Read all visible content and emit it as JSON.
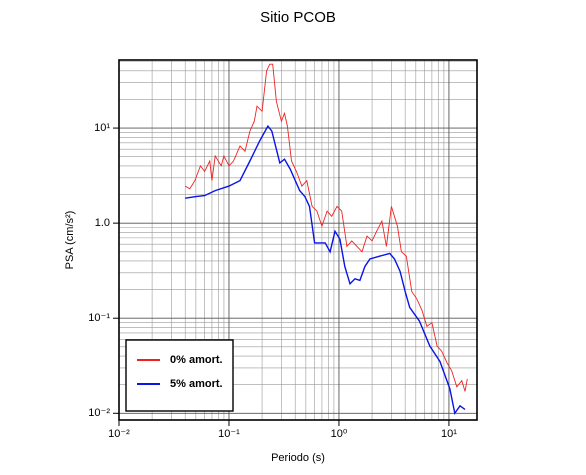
{
  "chart_data": {
    "type": "line",
    "title": "Sitio PCOB",
    "x_label": "Periodo (s)",
    "y_label": "PSA (cm/s²)",
    "xscale": "log",
    "yscale": "log",
    "grid": true,
    "legend": "lower-left",
    "xlim": [
      0.01,
      18
    ],
    "ylim": [
      0.0085,
      52
    ],
    "xticks": [
      {
        "value": 0.01,
        "label": "10⁻²"
      },
      {
        "value": 0.1,
        "label": "10⁻¹"
      },
      {
        "value": 1,
        "label": "10⁰"
      },
      {
        "value": 10,
        "label": "10¹"
      }
    ],
    "yticks": [
      {
        "value": 0.01,
        "label": "10⁻²"
      },
      {
        "value": 0.1,
        "label": "10⁻¹"
      },
      {
        "value": 1,
        "label": "1.0"
      },
      {
        "value": 10,
        "label": "10¹"
      }
    ],
    "xminorticks": [
      0.02,
      0.03,
      0.04,
      0.05,
      0.06,
      0.07,
      0.08,
      0.09,
      0.2,
      0.3,
      0.4,
      0.5,
      0.6,
      0.7,
      0.8,
      0.9,
      2,
      3,
      4,
      5,
      6,
      7,
      8,
      9
    ],
    "yminorticks": [
      0.02,
      0.03,
      0.04,
      0.05,
      0.06,
      0.07,
      0.08,
      0.09,
      0.2,
      0.3,
      0.4,
      0.5,
      0.6,
      0.7,
      0.8,
      0.9,
      2,
      3,
      4,
      5,
      6,
      7,
      8,
      9,
      20,
      30,
      40,
      50
    ],
    "series": [
      {
        "name": "0% amort.",
        "color": "#ee2222",
        "x": [
          0.04,
          0.044,
          0.049,
          0.055,
          0.06,
          0.067,
          0.07,
          0.075,
          0.085,
          0.09,
          0.1,
          0.11,
          0.126,
          0.14,
          0.155,
          0.17,
          0.18,
          0.2,
          0.22,
          0.235,
          0.25,
          0.27,
          0.3,
          0.32,
          0.34,
          0.37,
          0.41,
          0.46,
          0.51,
          0.57,
          0.63,
          0.7,
          0.78,
          0.86,
          0.96,
          1.06,
          1.18,
          1.31,
          1.46,
          1.62,
          1.8,
          2.0,
          2.2,
          2.46,
          2.7,
          3.0,
          3.4,
          3.7,
          4.1,
          4.6,
          5.1,
          5.7,
          6.3,
          7.0,
          7.8,
          8.6,
          9.6,
          10.6,
          11.8,
          13.1,
          14,
          14.7
        ],
        "values": [
          2.45,
          2.3,
          2.8,
          4.0,
          3.5,
          4.5,
          2.8,
          5.1,
          4.0,
          5.1,
          4.0,
          4.5,
          6.5,
          5.7,
          9.3,
          11.8,
          17,
          15,
          40,
          47,
          47,
          19,
          11.8,
          14.3,
          10.5,
          4.5,
          3.5,
          2.45,
          2.8,
          1.5,
          1.34,
          0.93,
          1.34,
          1.18,
          1.5,
          1.34,
          0.57,
          0.65,
          0.57,
          0.5,
          0.73,
          0.65,
          0.82,
          1.05,
          0.57,
          1.5,
          0.93,
          0.5,
          0.45,
          0.19,
          0.16,
          0.12,
          0.082,
          0.09,
          0.051,
          0.045,
          0.034,
          0.028,
          0.019,
          0.022,
          0.017,
          0.023
        ]
      },
      {
        "name": "5% amort.",
        "color": "#0a14e6",
        "x": [
          0.04,
          0.05,
          0.06,
          0.075,
          0.1,
          0.126,
          0.155,
          0.19,
          0.226,
          0.245,
          0.29,
          0.32,
          0.36,
          0.44,
          0.49,
          0.54,
          0.6,
          0.75,
          0.83,
          0.92,
          1.02,
          1.13,
          1.26,
          1.4,
          1.55,
          1.72,
          1.91,
          2.36,
          2.9,
          3.2,
          3.6,
          4.0,
          4.4,
          5.4,
          6.7,
          8.3,
          10.2,
          11.3,
          12.6,
          14
        ],
        "values": [
          1.83,
          1.9,
          1.95,
          2.2,
          2.45,
          2.8,
          4.5,
          7.3,
          10.5,
          9.3,
          4.3,
          4.7,
          3.7,
          2.2,
          1.9,
          1.5,
          0.62,
          0.62,
          0.5,
          0.82,
          0.68,
          0.35,
          0.23,
          0.26,
          0.25,
          0.35,
          0.42,
          0.45,
          0.48,
          0.42,
          0.31,
          0.19,
          0.13,
          0.093,
          0.051,
          0.035,
          0.018,
          0.01,
          0.012,
          0.011
        ]
      }
    ]
  }
}
